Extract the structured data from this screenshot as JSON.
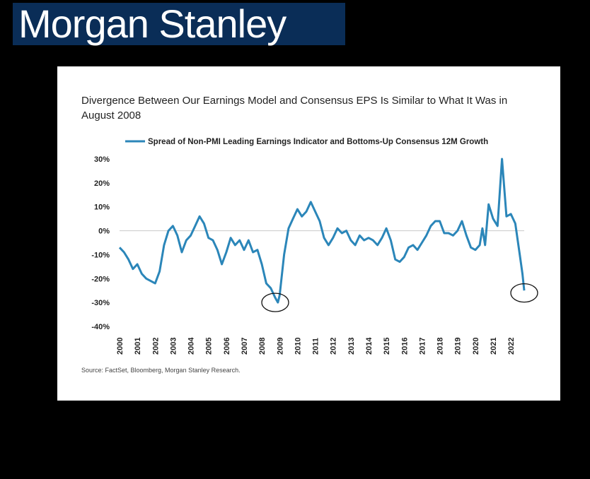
{
  "brand": {
    "logo_text": "Morgan Stanley",
    "logo_bg": "#0a2d57"
  },
  "chart_data": {
    "type": "line",
    "title": "Divergence Between Our Earnings Model and Consensus EPS Is Similar to What It Was in August 2008",
    "xlabel": "",
    "ylabel": "",
    "y_ticks": [
      "30%",
      "20%",
      "10%",
      "0%",
      "-10%",
      "-20%",
      "-30%",
      "-40%"
    ],
    "y_tick_values": [
      30,
      20,
      10,
      0,
      -10,
      -20,
      -30,
      -40
    ],
    "x_ticks": [
      "2000",
      "2001",
      "2002",
      "2003",
      "2004",
      "2005",
      "2006",
      "2007",
      "2008",
      "2009",
      "2010",
      "2011",
      "2012",
      "2013",
      "2014",
      "2015",
      "2016",
      "2017",
      "2018",
      "2019",
      "2020",
      "2021",
      "2022"
    ],
    "ylim": [
      -40,
      30
    ],
    "xlim": [
      2000,
      2022.75
    ],
    "grid": false,
    "legend": "top",
    "series": [
      {
        "name": "Spread of Non-PMI Leading Earnings Indicator and Bottoms-Up Consensus 12M Growth",
        "color": "#2b86b9",
        "points": [
          [
            2000.0,
            -7
          ],
          [
            2000.25,
            -9
          ],
          [
            2000.5,
            -12
          ],
          [
            2000.75,
            -16
          ],
          [
            2001.0,
            -14
          ],
          [
            2001.25,
            -18
          ],
          [
            2001.5,
            -20
          ],
          [
            2001.75,
            -21
          ],
          [
            2002.0,
            -22
          ],
          [
            2002.25,
            -17
          ],
          [
            2002.5,
            -6
          ],
          [
            2002.75,
            0
          ],
          [
            2003.0,
            2
          ],
          [
            2003.25,
            -2
          ],
          [
            2003.5,
            -9
          ],
          [
            2003.75,
            -4
          ],
          [
            2004.0,
            -2
          ],
          [
            2004.25,
            2
          ],
          [
            2004.5,
            6
          ],
          [
            2004.75,
            3
          ],
          [
            2005.0,
            -3
          ],
          [
            2005.25,
            -4
          ],
          [
            2005.5,
            -8
          ],
          [
            2005.75,
            -14
          ],
          [
            2006.0,
            -9
          ],
          [
            2006.25,
            -3
          ],
          [
            2006.5,
            -6
          ],
          [
            2006.75,
            -4
          ],
          [
            2007.0,
            -8
          ],
          [
            2007.25,
            -4
          ],
          [
            2007.5,
            -9
          ],
          [
            2007.75,
            -8
          ],
          [
            2008.0,
            -14
          ],
          [
            2008.25,
            -22
          ],
          [
            2008.5,
            -24
          ],
          [
            2008.75,
            -28
          ],
          [
            2008.9,
            -30
          ],
          [
            2009.0,
            -27
          ],
          [
            2009.25,
            -10
          ],
          [
            2009.5,
            1
          ],
          [
            2009.75,
            5
          ],
          [
            2010.0,
            9
          ],
          [
            2010.25,
            6
          ],
          [
            2010.5,
            8
          ],
          [
            2010.75,
            12
          ],
          [
            2011.0,
            8
          ],
          [
            2011.25,
            4
          ],
          [
            2011.5,
            -3
          ],
          [
            2011.75,
            -6
          ],
          [
            2012.0,
            -3
          ],
          [
            2012.25,
            1
          ],
          [
            2012.5,
            -1
          ],
          [
            2012.75,
            0
          ],
          [
            2013.0,
            -4
          ],
          [
            2013.25,
            -6
          ],
          [
            2013.5,
            -2
          ],
          [
            2013.75,
            -4
          ],
          [
            2014.0,
            -3
          ],
          [
            2014.25,
            -4
          ],
          [
            2014.5,
            -6
          ],
          [
            2014.75,
            -3
          ],
          [
            2015.0,
            1
          ],
          [
            2015.25,
            -4
          ],
          [
            2015.5,
            -12
          ],
          [
            2015.75,
            -13
          ],
          [
            2016.0,
            -11
          ],
          [
            2016.25,
            -7
          ],
          [
            2016.5,
            -6
          ],
          [
            2016.75,
            -8
          ],
          [
            2017.0,
            -5
          ],
          [
            2017.25,
            -2
          ],
          [
            2017.5,
            2
          ],
          [
            2017.75,
            4
          ],
          [
            2018.0,
            4
          ],
          [
            2018.25,
            -1
          ],
          [
            2018.5,
            -1
          ],
          [
            2018.75,
            -2
          ],
          [
            2019.0,
            0
          ],
          [
            2019.25,
            4
          ],
          [
            2019.5,
            -2
          ],
          [
            2019.75,
            -7
          ],
          [
            2020.0,
            -8
          ],
          [
            2020.25,
            -6
          ],
          [
            2020.4,
            1
          ],
          [
            2020.55,
            -6
          ],
          [
            2020.75,
            11
          ],
          [
            2021.0,
            5
          ],
          [
            2021.25,
            2
          ],
          [
            2021.5,
            30
          ],
          [
            2021.75,
            6
          ],
          [
            2022.0,
            7
          ],
          [
            2022.25,
            3
          ],
          [
            2022.5,
            -10
          ],
          [
            2022.65,
            -18
          ],
          [
            2022.75,
            -25
          ]
        ]
      }
    ],
    "annotations": [
      {
        "type": "circle",
        "x": 2008.75,
        "y": -30
      },
      {
        "type": "circle",
        "x": 2022.75,
        "y": -26
      }
    ],
    "source": "Source: FactSet, Bloomberg, Morgan Stanley Research."
  }
}
